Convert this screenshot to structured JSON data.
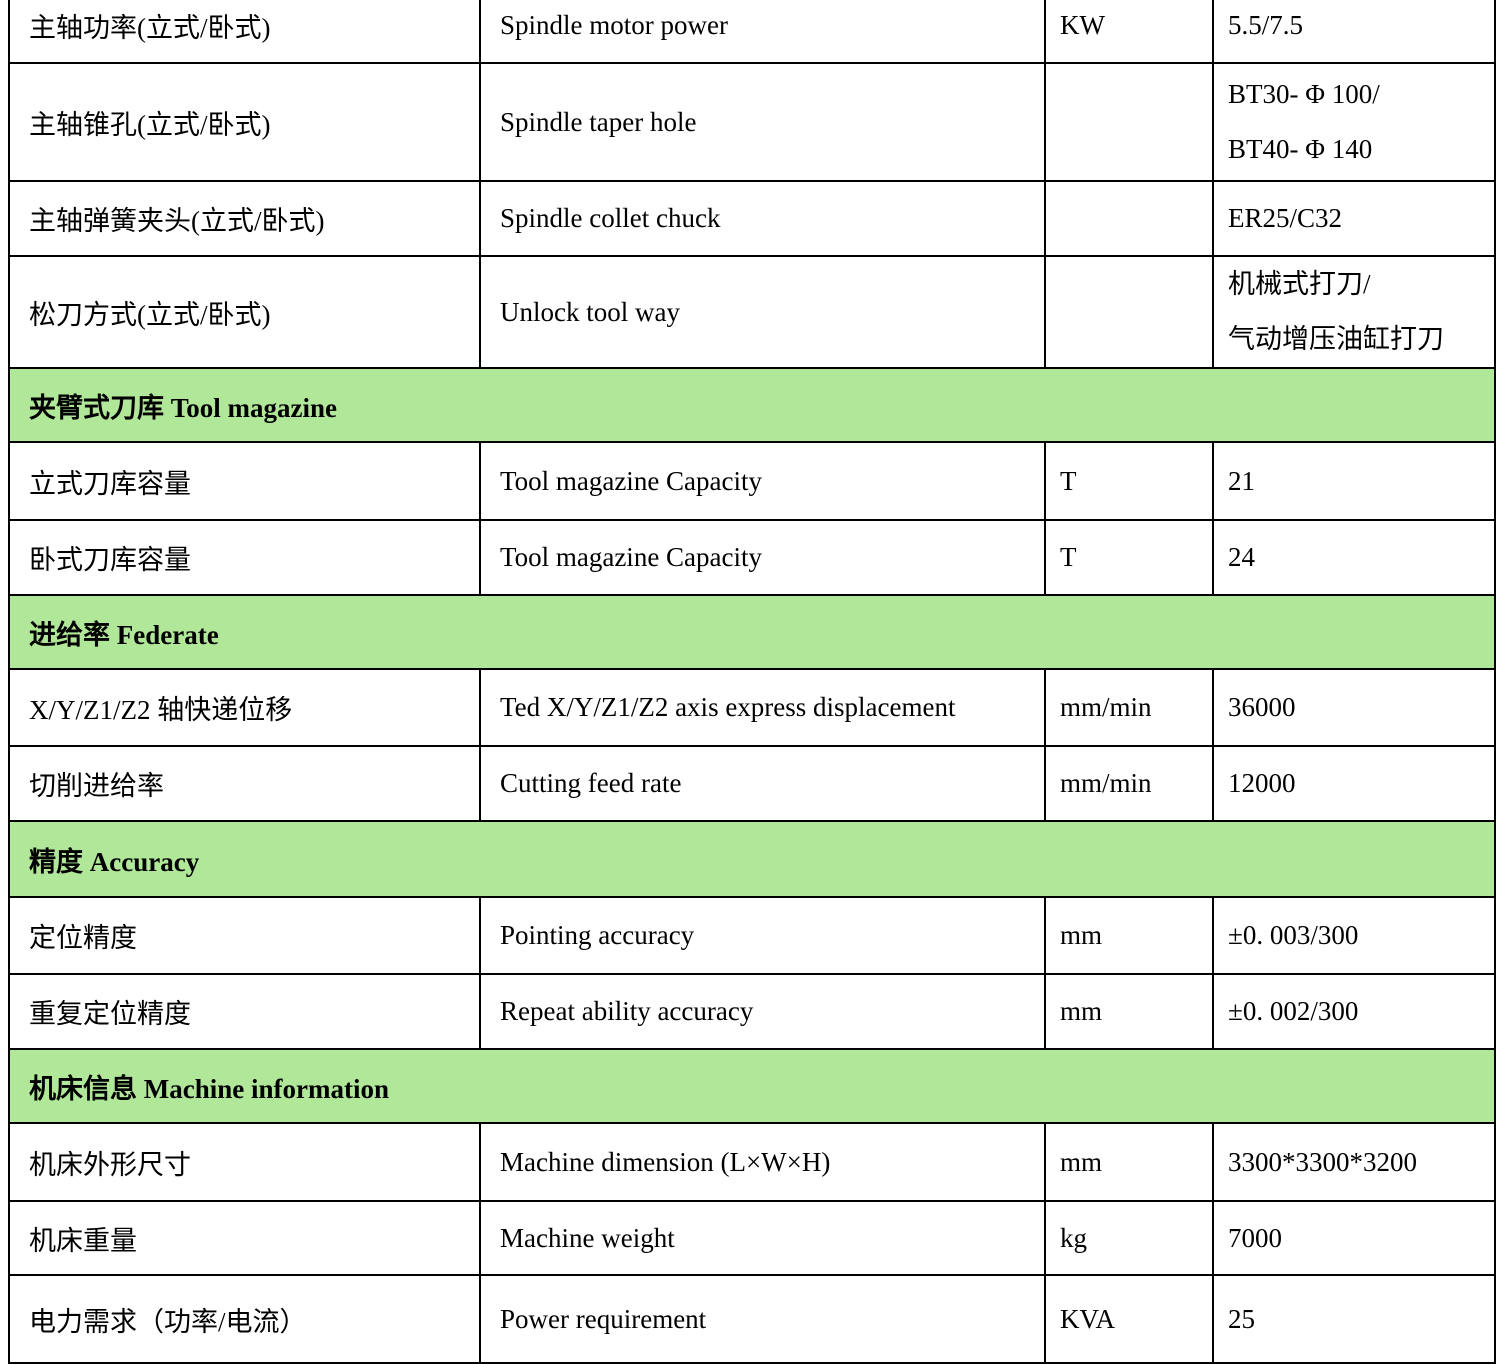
{
  "table": {
    "section_bg": "#b1e798",
    "border_color": "#000000",
    "rows": [
      {
        "kind": "data",
        "cn": "主轴功率(立式/卧式)",
        "en": "Spindle motor power",
        "unit": "KW",
        "values": [
          "5.5/7.5"
        ]
      },
      {
        "kind": "data",
        "cn": "主轴锥孔(立式/卧式)",
        "en": "Spindle taper hole",
        "unit": "",
        "values": [
          "BT30- Φ 100/",
          "BT40- Φ 140"
        ]
      },
      {
        "kind": "data",
        "cn": "主轴弹簧夹头(立式/卧式)",
        "en": "Spindle collet chuck",
        "unit": "",
        "values": [
          "ER25/C32"
        ]
      },
      {
        "kind": "data",
        "cn": "松刀方式(立式/卧式)",
        "en": "Unlock tool way",
        "unit": "",
        "values": [
          "机械式打刀/",
          "气动增压油缸打刀"
        ]
      },
      {
        "kind": "section",
        "title": "夹臂式刀库 Tool magazine"
      },
      {
        "kind": "data",
        "cn": "立式刀库容量",
        "en": "Tool magazine Capacity",
        "unit": "T",
        "values": [
          "21"
        ]
      },
      {
        "kind": "data",
        "cn": "卧式刀库容量",
        "en": "Tool magazine Capacity",
        "unit": "T",
        "values": [
          "24"
        ]
      },
      {
        "kind": "section",
        "title": "进给率 Federate"
      },
      {
        "kind": "data",
        "cn": "X/Y/Z1/Z2 轴快递位移",
        "en": "Ted X/Y/Z1/Z2 axis express displacement",
        "unit": "mm/min",
        "values": [
          "36000"
        ]
      },
      {
        "kind": "data",
        "cn": "切削进给率",
        "en": "Cutting feed rate",
        "unit": "mm/min",
        "values": [
          "12000"
        ]
      },
      {
        "kind": "section",
        "title": "精度 Accuracy"
      },
      {
        "kind": "data",
        "cn": "定位精度",
        "en": "Pointing accuracy",
        "unit": "mm",
        "values": [
          "±0. 003/300"
        ]
      },
      {
        "kind": "data",
        "cn": "重复定位精度",
        "en": "Repeat ability accuracy",
        "unit": "mm",
        "values": [
          "±0. 002/300"
        ]
      },
      {
        "kind": "section",
        "title": "机床信息 Machine information"
      },
      {
        "kind": "data",
        "cn": "机床外形尺寸",
        "en": "Machine dimension (L×W×H)",
        "unit": "mm",
        "values": [
          "3300*3300*3200"
        ]
      },
      {
        "kind": "data",
        "cn": "机床重量",
        "en": "Machine weight",
        "unit": "kg",
        "values": [
          "7000"
        ]
      },
      {
        "kind": "data",
        "cn": "电力需求（功率/电流）",
        "en": "Power requirement",
        "unit": "KVA",
        "values": [
          "25"
        ]
      }
    ]
  }
}
